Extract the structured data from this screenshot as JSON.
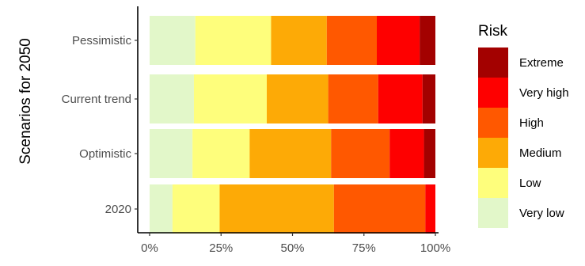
{
  "chart_data": {
    "type": "bar",
    "orientation": "horizontal",
    "stacked": true,
    "normalized": true,
    "ylabel": "Scenarios for 2050",
    "xlabel": "",
    "categories": [
      "Pessimistic",
      "Current trend",
      "Optimistic",
      "2020"
    ],
    "x_ticks": [
      "0%",
      "25%",
      "50%",
      "75%",
      "100%"
    ],
    "xlim": [
      0,
      1
    ],
    "grid": false,
    "legend": {
      "title": "Risk",
      "position": "right",
      "entries": [
        "Extreme",
        "Very high",
        "High",
        "Medium",
        "Low",
        "Very low"
      ]
    },
    "series": [
      {
        "name": "Very low",
        "color": "#e2f7c9",
        "values": [
          0.16,
          0.155,
          0.15,
          0.08
        ]
      },
      {
        "name": "Low",
        "color": "#fefe7c",
        "values": [
          0.265,
          0.255,
          0.2,
          0.165
        ]
      },
      {
        "name": "Medium",
        "color": "#fdaa06",
        "values": [
          0.195,
          0.215,
          0.285,
          0.4
        ]
      },
      {
        "name": "High",
        "color": "#ff5800",
        "values": [
          0.175,
          0.175,
          0.205,
          0.32
        ]
      },
      {
        "name": "Very high",
        "color": "#fe0000",
        "values": [
          0.15,
          0.155,
          0.12,
          0.035
        ]
      },
      {
        "name": "Extreme",
        "color": "#a30100",
        "values": [
          0.055,
          0.045,
          0.04,
          0.0
        ]
      }
    ]
  }
}
